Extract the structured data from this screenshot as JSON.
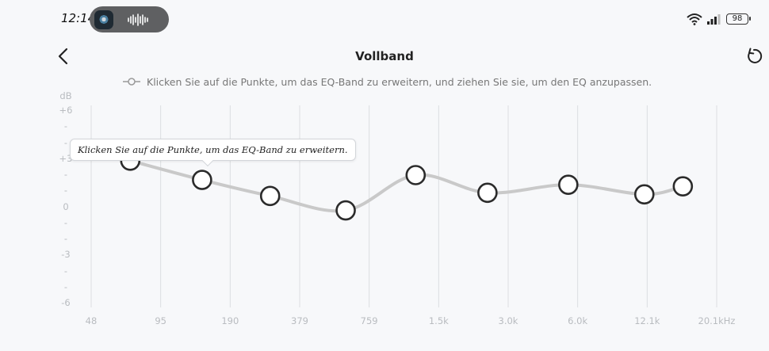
{
  "status_bar": {
    "time": "12:14",
    "battery": "98"
  },
  "header": {
    "title": "Vollband"
  },
  "hint": "Klicken Sie auf die Punkte, um das EQ-Band zu erweitern, und ziehen Sie sie, um den EQ anzupassen.",
  "tooltip": "Klicken Sie auf die Punkte, um das EQ-Band zu erweitern.",
  "y_axis": {
    "unit": "dB",
    "labels": [
      "+6",
      "-",
      "-",
      "+3",
      "-",
      "-",
      "0",
      "-",
      "-",
      "-3",
      "-",
      "-",
      "-6"
    ]
  },
  "x_axis": {
    "labels": [
      "48",
      "95",
      "190",
      "379",
      "759",
      "1.5k",
      "3.0k",
      "6.0k",
      "12.1k",
      "20.1kHz"
    ]
  },
  "chart_data": {
    "type": "line",
    "title": "Vollband",
    "ylabel": "dB",
    "xlabel": "",
    "ylim": [
      -6,
      6
    ],
    "x_ticks": [
      "48",
      "95",
      "190",
      "379",
      "759",
      "1.5k",
      "3.0k",
      "6.0k",
      "12.1k",
      "20.1kHz"
    ],
    "points": [
      {
        "x": 70,
        "y": 2.9
      },
      {
        "x": 140,
        "y": 1.7
      },
      {
        "x": 270,
        "y": 0.7
      },
      {
        "x": 560,
        "y": -0.2
      },
      {
        "x": 1100,
        "y": 2.0
      },
      {
        "x": 2200,
        "y": 0.9
      },
      {
        "x": 4800,
        "y": 1.4
      },
      {
        "x": 10000,
        "y": 0.8
      },
      {
        "x": 14500,
        "y": 1.3
      }
    ]
  }
}
